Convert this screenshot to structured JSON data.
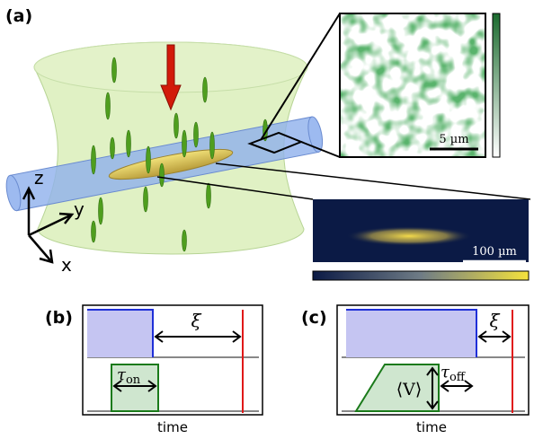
{
  "panel_a": {
    "label": "(a)",
    "inset_scale": "5 µm",
    "image_scale": "100 µm",
    "axes": {
      "z": "z",
      "y": "y",
      "x": "x"
    }
  },
  "panel_b": {
    "label": "(b)",
    "delay": "ξ",
    "pulse_symbol": "τ",
    "pulse_sub": "on",
    "xlabel": "time"
  },
  "panel_c": {
    "label": "(c)",
    "delay": "ξ",
    "mean": "⟨V⟩",
    "pulse_symbol": "τ",
    "pulse_sub": "off",
    "xlabel": "time"
  }
}
